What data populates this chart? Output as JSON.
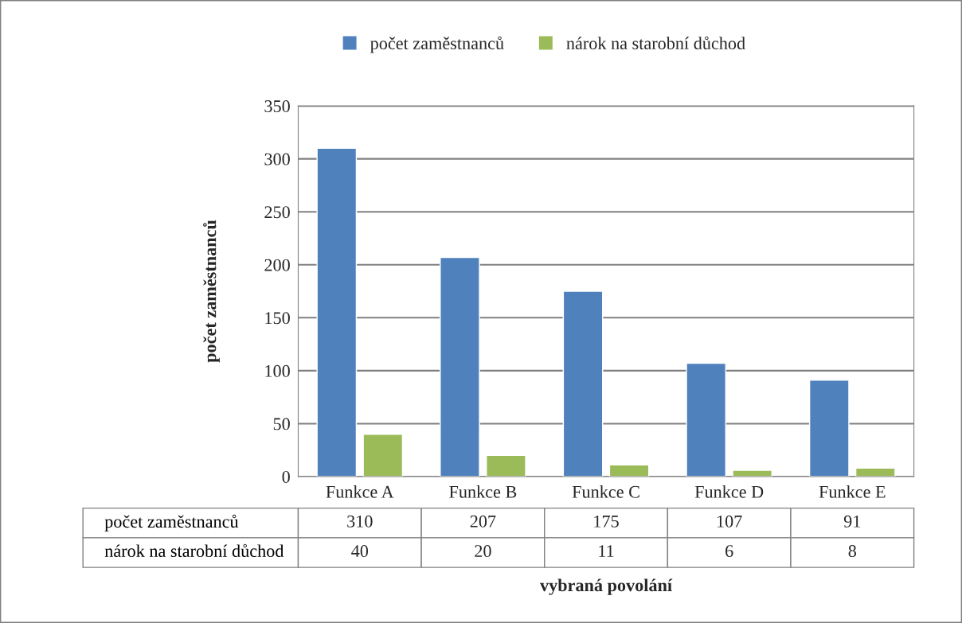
{
  "chart_data": {
    "type": "bar",
    "xlabel": "vybraná povolání",
    "ylabel": "počet zaměstnanců",
    "categories": [
      "Funkce A",
      "Funkce B",
      "Funkce C",
      "Funkce D",
      "Funkce E"
    ],
    "series": [
      {
        "name": "počet zaměstnanců",
        "color": "#4f81bd",
        "values": [
          310,
          207,
          175,
          107,
          91
        ]
      },
      {
        "name": "nárok na starobní důchod",
        "color": "#9bbb59",
        "values": [
          40,
          20,
          11,
          6,
          8
        ]
      }
    ],
    "ylim": [
      0,
      350
    ],
    "yticks": [
      0,
      50,
      100,
      150,
      200,
      250,
      300,
      350
    ],
    "grid": "y",
    "legend": "top",
    "data_labels": true
  }
}
